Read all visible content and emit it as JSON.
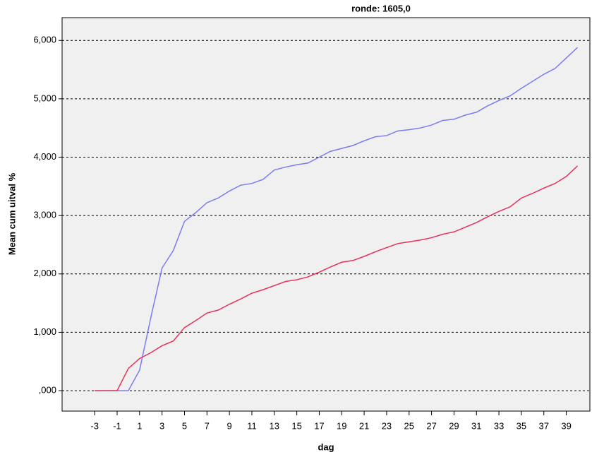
{
  "chart_data": {
    "type": "line",
    "title": "ronde: 1605,0",
    "xlabel": "dag",
    "ylabel": "Mean cum uitval %",
    "x": [
      -3,
      -2,
      -1,
      0,
      1,
      2,
      3,
      4,
      5,
      6,
      7,
      8,
      9,
      10,
      11,
      12,
      13,
      14,
      15,
      16,
      17,
      18,
      19,
      20,
      21,
      22,
      23,
      24,
      25,
      26,
      27,
      28,
      29,
      30,
      31,
      32,
      33,
      34,
      35,
      36,
      37,
      38,
      39,
      40
    ],
    "series": [
      {
        "color": "#7b7bf0",
        "values": [
          0,
          0,
          0,
          0,
          0.35,
          1.25,
          2.1,
          2.4,
          2.9,
          3.05,
          3.22,
          3.3,
          3.42,
          3.52,
          3.55,
          3.62,
          3.78,
          3.83,
          3.87,
          3.9,
          4.0,
          4.1,
          4.15,
          4.2,
          4.28,
          4.35,
          4.37,
          4.45,
          4.47,
          4.5,
          4.55,
          4.63,
          4.65,
          4.72,
          4.77,
          4.88,
          4.97,
          5.05,
          5.18,
          5.3,
          5.42,
          5.52,
          5.7,
          5.88
        ]
      },
      {
        "color": "#e8305a",
        "values": [
          0,
          0,
          0,
          0.38,
          0.55,
          0.65,
          0.77,
          0.85,
          1.08,
          1.2,
          1.33,
          1.38,
          1.48,
          1.57,
          1.67,
          1.73,
          1.8,
          1.87,
          1.9,
          1.95,
          2.03,
          2.12,
          2.2,
          2.23,
          2.3,
          2.38,
          2.45,
          2.52,
          2.55,
          2.58,
          2.62,
          2.68,
          2.72,
          2.8,
          2.88,
          2.98,
          3.07,
          3.15,
          3.3,
          3.38,
          3.47,
          3.55,
          3.67,
          3.85
        ]
      }
    ],
    "xlim": [
      -5.9,
      41.1
    ],
    "xticks": [
      -3,
      -1,
      1,
      3,
      5,
      7,
      9,
      11,
      13,
      15,
      17,
      19,
      21,
      23,
      25,
      27,
      29,
      31,
      33,
      35,
      37,
      39
    ],
    "ylim": [
      -0.35,
      6.39
    ],
    "yticks": [
      {
        "value": 0,
        "label": ",000"
      },
      {
        "value": 1,
        "label": "1,000"
      },
      {
        "value": 2,
        "label": "2,000"
      },
      {
        "value": 3,
        "label": "3,000"
      },
      {
        "value": 4,
        "label": "4,000"
      },
      {
        "value": 5,
        "label": "5,000"
      },
      {
        "value": 6,
        "label": "6,000"
      }
    ],
    "grid": true
  }
}
